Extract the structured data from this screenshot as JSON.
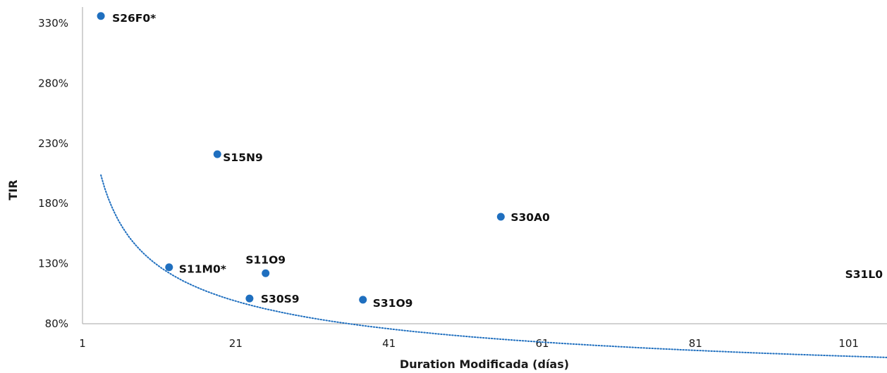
{
  "chart_data": {
    "type": "scatter",
    "xlabel": "Duration Modificada (días)",
    "ylabel": "TIR",
    "xlim": [
      1,
      106
    ],
    "ylim": [
      80,
      340
    ],
    "x_ticks": [
      1,
      21,
      41,
      61,
      81,
      101
    ],
    "x_tick_labels": [
      "1",
      "21",
      "41",
      "61",
      "81",
      "101"
    ],
    "y_ticks": [
      80,
      130,
      180,
      230,
      280,
      330
    ],
    "y_tick_labels": [
      "80%",
      "130%",
      "180%",
      "230%",
      "280%",
      "330%"
    ],
    "grid": false,
    "legend": "none",
    "colors": {
      "point": "#1f6fbf",
      "trend": "#1f6fbf",
      "axis": "#a6a6a6"
    },
    "points": [
      {
        "label": "S26F0*",
        "x": 3.4,
        "y": 336
      },
      {
        "label": "S15N9",
        "x": 18.6,
        "y": 221
      },
      {
        "label": "S30A0",
        "x": 55.6,
        "y": 169
      },
      {
        "label": "S11M0*",
        "x": 12.3,
        "y": 127
      },
      {
        "label": "S11O9",
        "x": 24.9,
        "y": 122
      },
      {
        "label": "S30S9",
        "x": 22.8,
        "y": 101
      },
      {
        "label": "S31O9",
        "x": 37.6,
        "y": 100
      },
      {
        "label": "S31L0",
        "x": null,
        "y": null
      }
    ],
    "trendline": {
      "type": "power",
      "style": "dotted",
      "from_x": 3.4,
      "to_x": 106,
      "a": 331,
      "b": -0.397
    }
  }
}
